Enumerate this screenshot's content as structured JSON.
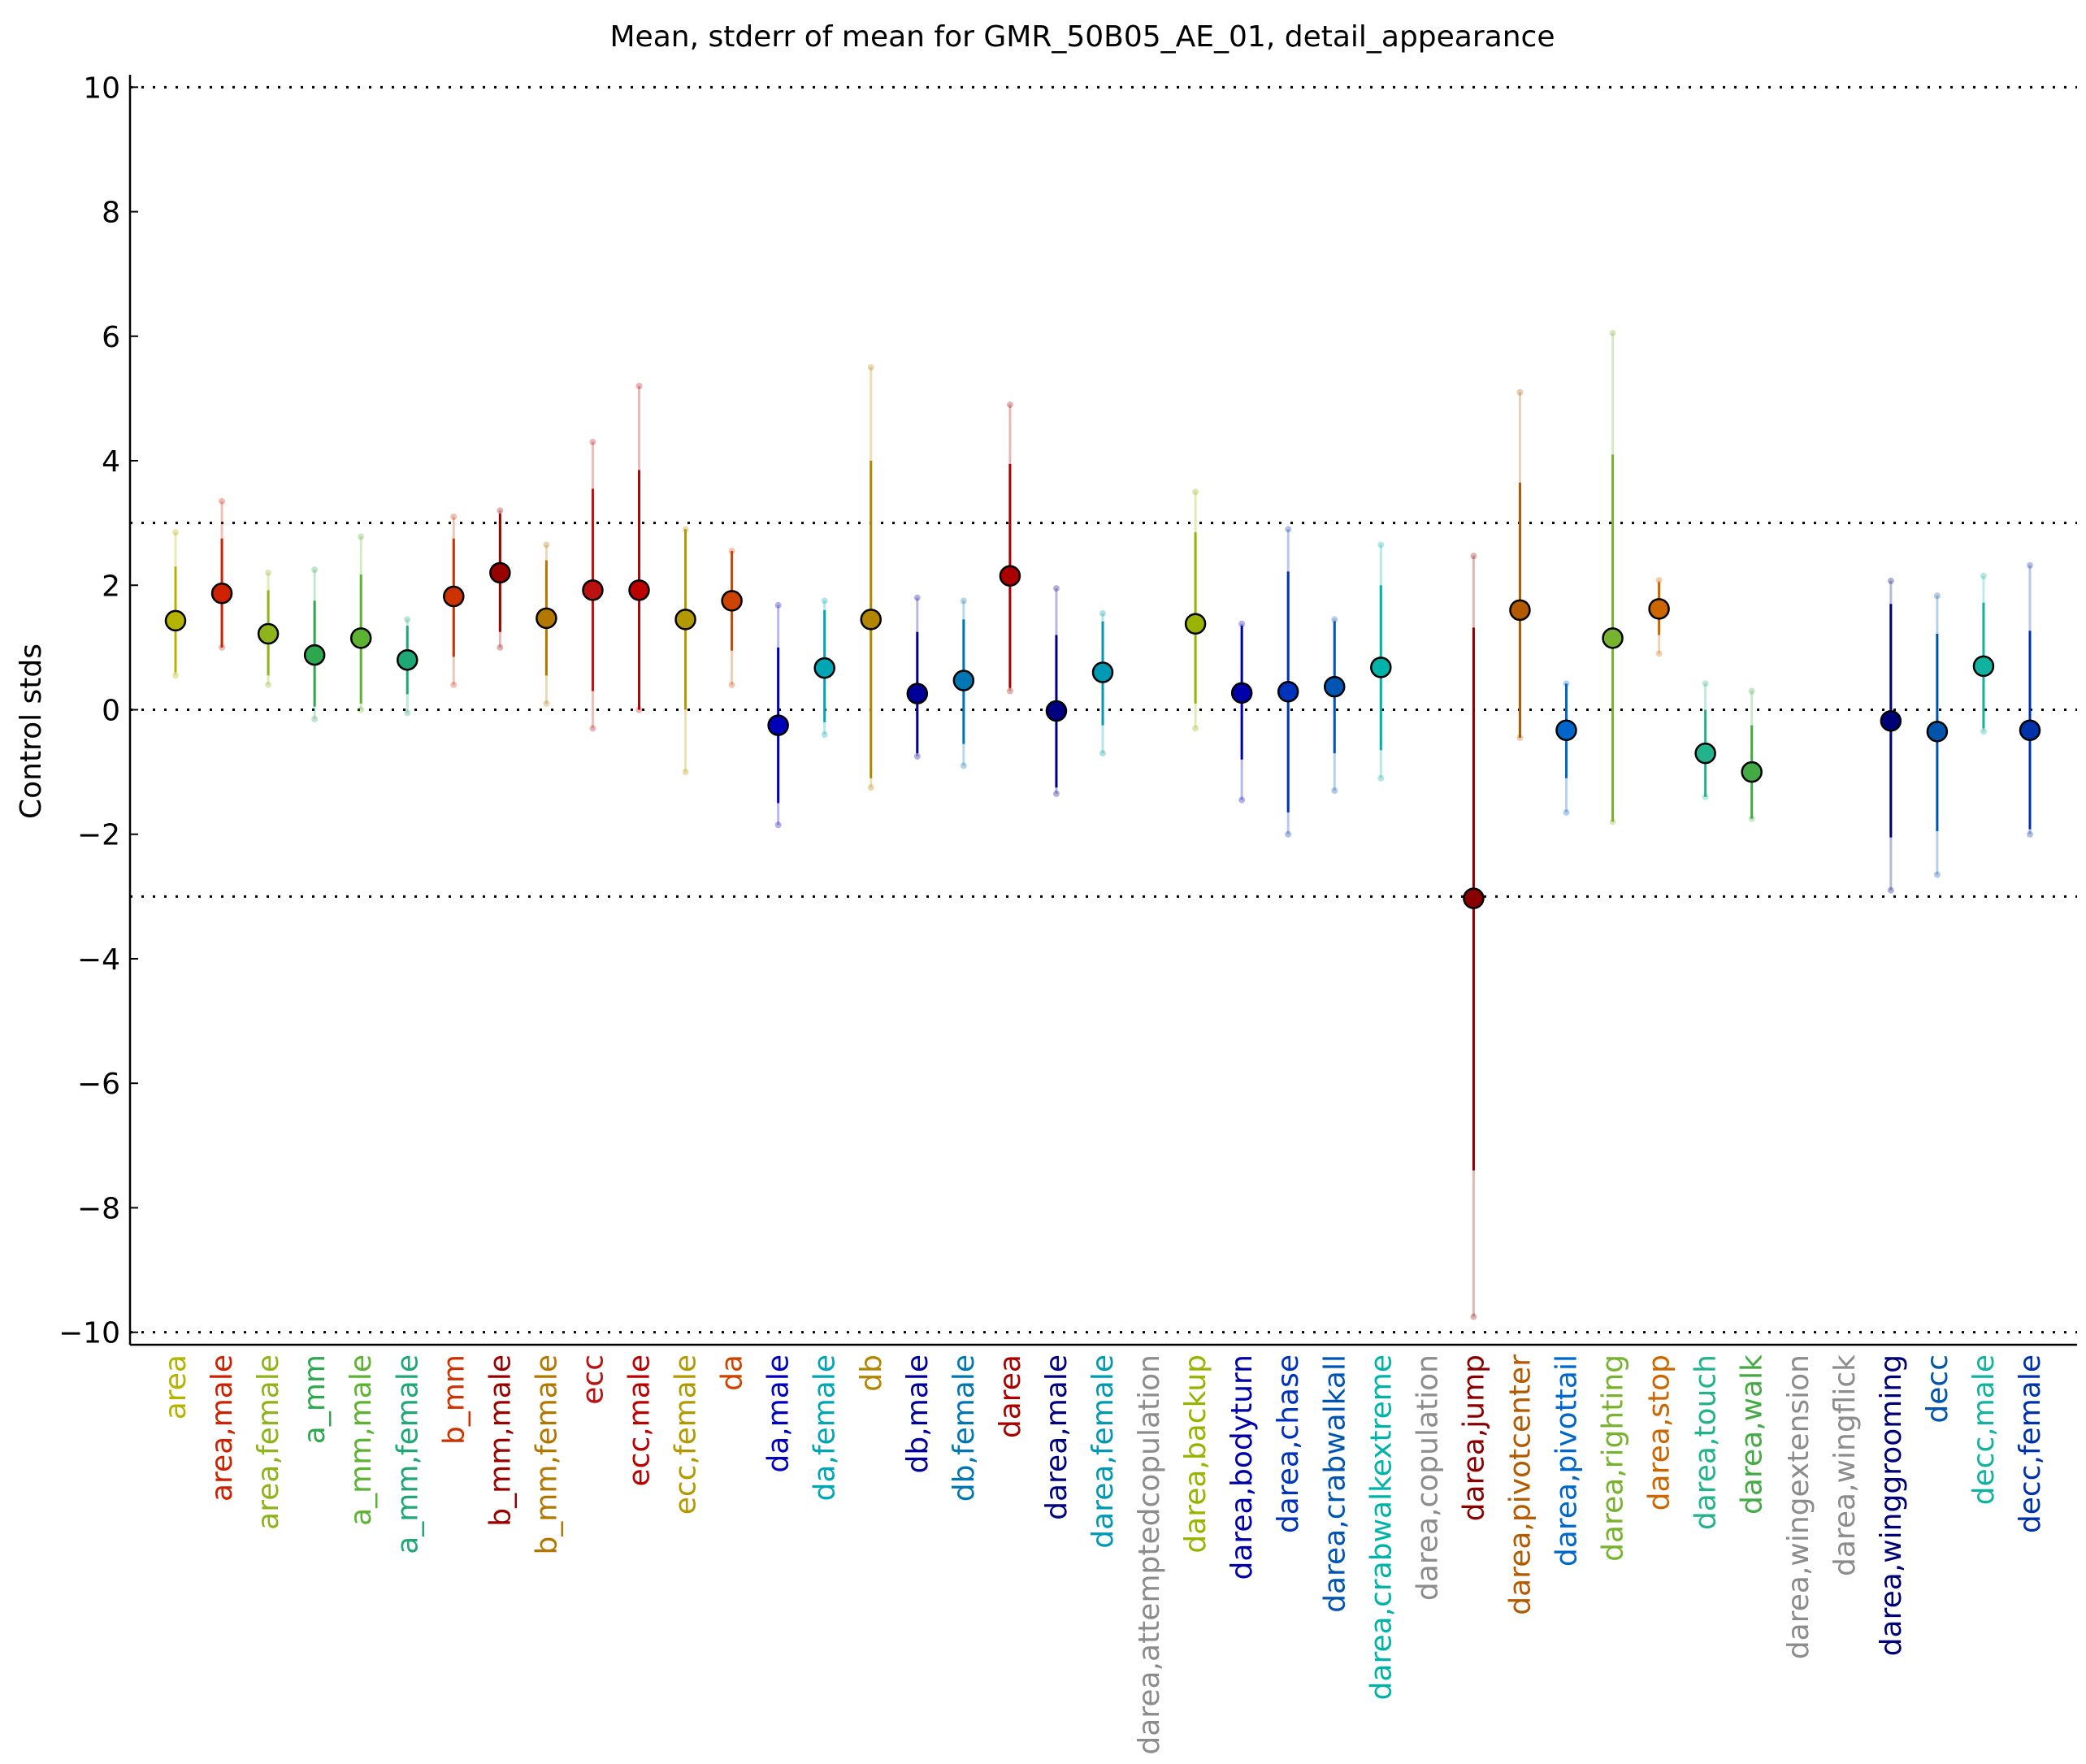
{
  "chart_data": {
    "type": "scatter",
    "title": "Mean, stderr of mean for GMR_50B05_AE_01, detail_appearance",
    "xlabel": "",
    "ylabel": "Control stds",
    "ylim": [
      -10.2,
      10.2
    ],
    "yticks": [
      10,
      8,
      6,
      4,
      2,
      0,
      -2,
      -4,
      -6,
      -8,
      -10
    ],
    "ytick_labels": [
      "10",
      "8",
      "6",
      "4",
      "2",
      "0",
      "−2",
      "−4",
      "−6",
      "−8",
      "−10"
    ],
    "reference_lines": [
      10,
      3,
      0,
      -3,
      -10
    ],
    "grid": false,
    "legend": "none",
    "series": [
      {
        "label": "area",
        "color": "#b3b300",
        "mean": 1.43,
        "err_lo": 0.6,
        "err_hi": 2.3,
        "range_lo": 0.55,
        "range_hi": 2.85
      },
      {
        "label": "area,male",
        "color": "#cc2200",
        "mean": 1.87,
        "err_lo": 1.0,
        "err_hi": 2.75,
        "range_lo": 1.0,
        "range_hi": 3.35
      },
      {
        "label": "area,female",
        "color": "#8fb31a",
        "mean": 1.22,
        "err_lo": 0.55,
        "err_hi": 1.92,
        "range_lo": 0.4,
        "range_hi": 2.2
      },
      {
        "label": "a_mm",
        "color": "#2ea84f",
        "mean": 0.88,
        "err_lo": 0.05,
        "err_hi": 1.75,
        "range_lo": -0.15,
        "range_hi": 2.25
      },
      {
        "label": "a_mm,male",
        "color": "#5cb332",
        "mean": 1.15,
        "err_lo": 0.1,
        "err_hi": 2.17,
        "range_lo": 0.0,
        "range_hi": 2.78
      },
      {
        "label": "a_mm,female",
        "color": "#1fa876",
        "mean": 0.8,
        "err_lo": 0.25,
        "err_hi": 1.35,
        "range_lo": -0.05,
        "range_hi": 1.45
      },
      {
        "label": "b_mm",
        "color": "#cc3300",
        "mean": 1.82,
        "err_lo": 0.85,
        "err_hi": 2.75,
        "range_lo": 0.4,
        "range_hi": 3.1
      },
      {
        "label": "b_mm,male",
        "color": "#990000",
        "mean": 2.2,
        "err_lo": 1.25,
        "err_hi": 3.15,
        "range_lo": 1.0,
        "range_hi": 3.2
      },
      {
        "label": "b_mm,female",
        "color": "#b37700",
        "mean": 1.47,
        "err_lo": 0.55,
        "err_hi": 2.4,
        "range_lo": 0.1,
        "range_hi": 2.65
      },
      {
        "label": "ecc",
        "color": "#bb1111",
        "mean": 1.92,
        "err_lo": 0.3,
        "err_hi": 3.55,
        "range_lo": -0.3,
        "range_hi": 4.3
      },
      {
        "label": "ecc,male",
        "color": "#bb0000",
        "mean": 1.92,
        "err_lo": 0.0,
        "err_hi": 3.85,
        "range_lo": 0.0,
        "range_hi": 5.2
      },
      {
        "label": "ecc,female",
        "color": "#b39900",
        "mean": 1.45,
        "err_lo": 0.0,
        "err_hi": 2.9,
        "range_lo": -1.0,
        "range_hi": 2.9
      },
      {
        "label": "da",
        "color": "#cc4400",
        "mean": 1.75,
        "err_lo": 0.95,
        "err_hi": 2.55,
        "range_lo": 0.4,
        "range_hi": 2.55
      },
      {
        "label": "da,male",
        "color": "#0000bb",
        "mean": -0.25,
        "err_lo": -1.5,
        "err_hi": 1.0,
        "range_lo": -1.85,
        "range_hi": 1.68
      },
      {
        "label": "da,female",
        "color": "#00a6b3",
        "mean": 0.67,
        "err_lo": -0.2,
        "err_hi": 1.6,
        "range_lo": -0.4,
        "range_hi": 1.75
      },
      {
        "label": "db",
        "color": "#b38600",
        "mean": 1.45,
        "err_lo": -1.1,
        "err_hi": 4.0,
        "range_lo": -1.25,
        "range_hi": 5.5
      },
      {
        "label": "db,male",
        "color": "#000099",
        "mean": 0.26,
        "err_lo": -0.7,
        "err_hi": 1.25,
        "range_lo": -0.75,
        "range_hi": 1.8
      },
      {
        "label": "db,female",
        "color": "#0077b3",
        "mean": 0.47,
        "err_lo": -0.55,
        "err_hi": 1.45,
        "range_lo": -0.9,
        "range_hi": 1.75
      },
      {
        "label": "darea",
        "color": "#aa0000",
        "mean": 2.15,
        "err_lo": 0.35,
        "err_hi": 3.95,
        "range_lo": 0.3,
        "range_hi": 4.9
      },
      {
        "label": "darea,male",
        "color": "#000080",
        "mean": -0.02,
        "err_lo": -1.25,
        "err_hi": 1.2,
        "range_lo": -1.35,
        "range_hi": 1.95
      },
      {
        "label": "darea,female",
        "color": "#0099b3",
        "mean": 0.6,
        "err_lo": -0.25,
        "err_hi": 1.42,
        "range_lo": -0.7,
        "range_hi": 1.55
      },
      {
        "label": "darea,attemptedcopulation",
        "color": "#8c8c8c",
        "mean": null,
        "err_lo": null,
        "err_hi": null,
        "range_lo": null,
        "range_hi": null
      },
      {
        "label": "darea,backup",
        "color": "#99b300",
        "mean": 1.38,
        "err_lo": 0.1,
        "err_hi": 2.85,
        "range_lo": -0.3,
        "range_hi": 3.5
      },
      {
        "label": "darea,bodyturn",
        "color": "#0000aa",
        "mean": 0.27,
        "err_lo": -0.8,
        "err_hi": 1.35,
        "range_lo": -1.45,
        "range_hi": 1.38
      },
      {
        "label": "darea,chase",
        "color": "#0033bb",
        "mean": 0.29,
        "err_lo": -1.65,
        "err_hi": 2.22,
        "range_lo": -2.0,
        "range_hi": 2.9
      },
      {
        "label": "darea,crabwalkall",
        "color": "#0055b3",
        "mean": 0.37,
        "err_lo": -0.7,
        "err_hi": 1.42,
        "range_lo": -1.3,
        "range_hi": 1.45
      },
      {
        "label": "darea,crabwalkextreme",
        "color": "#00b3a8",
        "mean": 0.68,
        "err_lo": -0.65,
        "err_hi": 2.0,
        "range_lo": -1.1,
        "range_hi": 2.65
      },
      {
        "label": "darea,copulation",
        "color": "#8c8c8c",
        "mean": null,
        "err_lo": null,
        "err_hi": null,
        "range_lo": null,
        "range_hi": null
      },
      {
        "label": "darea,jump",
        "color": "#880000",
        "mean": -3.03,
        "err_lo": -7.4,
        "err_hi": 1.32,
        "range_lo": -9.75,
        "range_hi": 2.47
      },
      {
        "label": "darea,pivotcenter",
        "color": "#b35900",
        "mean": 1.6,
        "err_lo": -0.45,
        "err_hi": 3.65,
        "range_lo": -0.45,
        "range_hi": 5.1
      },
      {
        "label": "darea,pivottail",
        "color": "#0066cc",
        "mean": -0.33,
        "err_lo": -1.1,
        "err_hi": 0.42,
        "range_lo": -1.65,
        "range_hi": 0.42
      },
      {
        "label": "darea,righting",
        "color": "#77b32e",
        "mean": 1.15,
        "err_lo": -1.8,
        "err_hi": 4.1,
        "range_lo": -1.8,
        "range_hi": 6.05
      },
      {
        "label": "darea,stop",
        "color": "#cc6600",
        "mean": 1.62,
        "err_lo": 1.2,
        "err_hi": 2.05,
        "range_lo": 0.9,
        "range_hi": 2.08
      },
      {
        "label": "darea,touch",
        "color": "#22b38c",
        "mean": -0.7,
        "err_lo": -1.4,
        "err_hi": 0.0,
        "range_lo": -1.4,
        "range_hi": 0.42
      },
      {
        "label": "darea,walk",
        "color": "#44aa44",
        "mean": -1.0,
        "err_lo": -1.75,
        "err_hi": -0.25,
        "range_lo": -1.75,
        "range_hi": 0.3
      },
      {
        "label": "darea,wingextension",
        "color": "#8c8c8c",
        "mean": null,
        "err_lo": null,
        "err_hi": null,
        "range_lo": null,
        "range_hi": null
      },
      {
        "label": "darea,wingflick",
        "color": "#8c8c8c",
        "mean": null,
        "err_lo": null,
        "err_hi": null,
        "range_lo": null,
        "range_hi": null
      },
      {
        "label": "darea,winggrooming",
        "color": "#000077",
        "mean": -0.18,
        "err_lo": -2.05,
        "err_hi": 1.7,
        "range_lo": -2.9,
        "range_hi": 2.07
      },
      {
        "label": "decc",
        "color": "#0055aa",
        "mean": -0.35,
        "err_lo": -1.95,
        "err_hi": 1.22,
        "range_lo": -2.65,
        "range_hi": 1.83
      },
      {
        "label": "decc,male",
        "color": "#11b3a0",
        "mean": 0.7,
        "err_lo": -0.3,
        "err_hi": 1.72,
        "range_lo": -0.35,
        "range_hi": 2.15
      },
      {
        "label": "decc,female",
        "color": "#0033aa",
        "mean": -0.33,
        "err_lo": -1.92,
        "err_hi": 1.27,
        "range_lo": -2.0,
        "range_hi": 2.32
      }
    ]
  }
}
